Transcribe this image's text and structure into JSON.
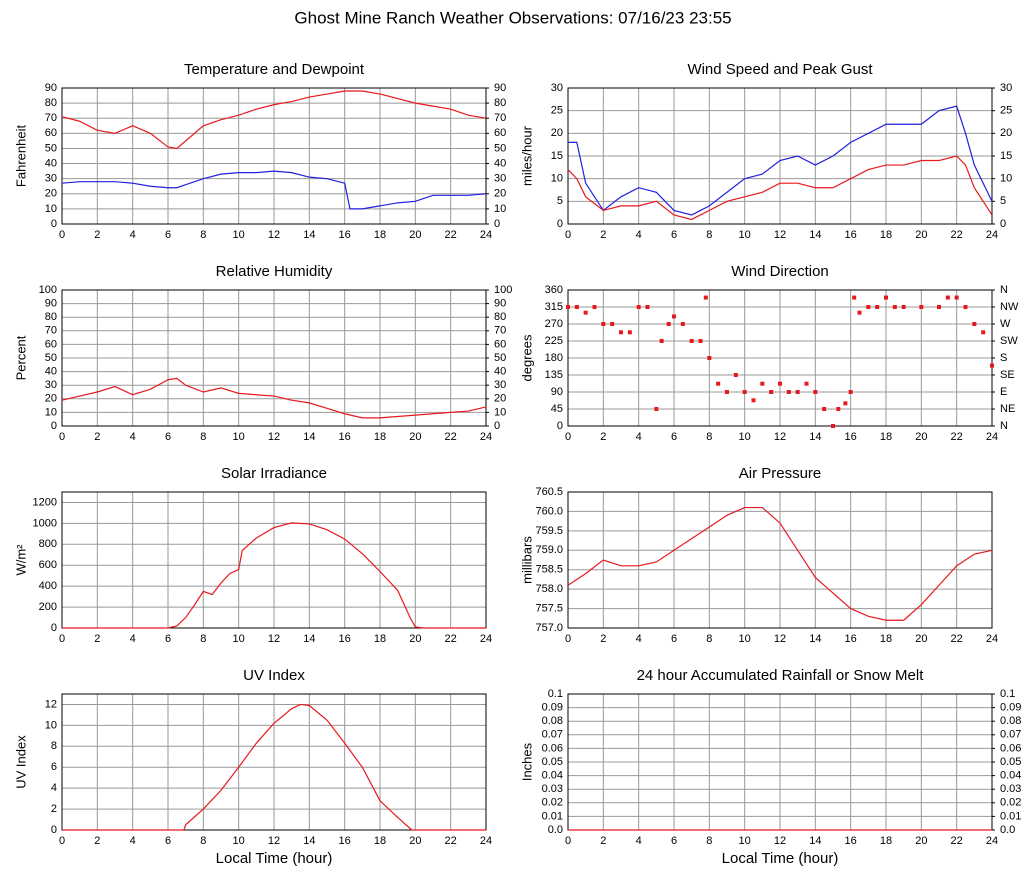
{
  "title": "Ghost Mine Ranch Weather Observations: 07/16/23 23:55",
  "chart_data": [
    {
      "type": "line",
      "title": "Temperature and Dewpoint",
      "y_label": "Fahrenheit",
      "x": [
        0,
        1,
        2,
        3,
        4,
        5,
        6,
        6.5,
        7,
        8,
        9,
        10,
        11,
        12,
        13,
        14,
        15,
        16,
        16.3,
        17,
        18,
        19,
        20,
        21,
        22,
        23,
        24
      ],
      "xlim": [
        0,
        24
      ],
      "xticks": [
        0,
        2,
        4,
        6,
        8,
        10,
        12,
        14,
        16,
        18,
        20,
        22,
        24
      ],
      "ylim": [
        0,
        90
      ],
      "yticks": [
        0,
        10,
        20,
        30,
        40,
        50,
        60,
        70,
        80,
        90
      ],
      "y2lim": [
        0,
        90
      ],
      "y2ticks": [
        0,
        10,
        20,
        30,
        40,
        50,
        60,
        70,
        80,
        90
      ],
      "grid": true,
      "series": [
        {
          "color": "#e8191d",
          "values": [
            71,
            68,
            62,
            60,
            65,
            60,
            51,
            50,
            55,
            65,
            69,
            72,
            76,
            79,
            81,
            84,
            86,
            88,
            88,
            88,
            86,
            83,
            80,
            78,
            76,
            72,
            70
          ]
        },
        {
          "color": "#2020e0",
          "values": [
            27,
            28,
            28,
            28,
            27,
            25,
            24,
            24,
            26,
            30,
            33,
            34,
            34,
            35,
            34,
            31,
            30,
            27,
            10,
            10,
            12,
            14,
            15,
            19,
            19,
            19,
            20
          ]
        }
      ]
    },
    {
      "type": "line",
      "title": "Wind Speed and Peak Gust",
      "y_label": "miles/hour",
      "x": [
        0,
        0.5,
        1,
        2,
        3,
        4,
        5,
        6,
        7,
        8,
        9,
        10,
        11,
        12,
        13,
        14,
        15,
        16,
        17,
        18,
        19,
        20,
        21,
        22,
        22.5,
        23,
        24
      ],
      "xlim": [
        0,
        24
      ],
      "xticks": [
        0,
        2,
        4,
        6,
        8,
        10,
        12,
        14,
        16,
        18,
        20,
        22,
        24
      ],
      "ylim": [
        0,
        30
      ],
      "yticks": [
        0,
        5,
        10,
        15,
        20,
        25,
        30
      ],
      "y2lim": [
        0,
        30
      ],
      "y2ticks": [
        0,
        5,
        10,
        15,
        20,
        25,
        30
      ],
      "grid": true,
      "series": [
        {
          "color": "#2020e0",
          "values": [
            18,
            18,
            9,
            3,
            6,
            8,
            7,
            3,
            2,
            4,
            7,
            10,
            11,
            14,
            15,
            13,
            15,
            18,
            20,
            22,
            22,
            22,
            25,
            26,
            20,
            13,
            5
          ]
        },
        {
          "color": "#e8191d",
          "values": [
            12,
            10,
            6,
            3,
            4,
            4,
            5,
            2,
            1,
            3,
            5,
            6,
            7,
            9,
            9,
            8,
            8,
            10,
            12,
            13,
            13,
            14,
            14,
            15,
            13,
            8,
            2
          ]
        }
      ]
    },
    {
      "type": "line",
      "title": "Relative Humidity",
      "y_label": "Percent",
      "x": [
        0,
        1,
        2,
        3,
        4,
        5,
        6,
        6.5,
        7,
        8,
        9,
        10,
        11,
        12,
        13,
        14,
        15,
        16,
        17,
        18,
        19,
        20,
        21,
        22,
        23,
        24
      ],
      "xlim": [
        0,
        24
      ],
      "xticks": [
        0,
        2,
        4,
        6,
        8,
        10,
        12,
        14,
        16,
        18,
        20,
        22,
        24
      ],
      "ylim": [
        0,
        100
      ],
      "yticks": [
        0,
        10,
        20,
        30,
        40,
        50,
        60,
        70,
        80,
        90,
        100
      ],
      "y2lim": [
        0,
        100
      ],
      "y2ticks": [
        0,
        10,
        20,
        30,
        40,
        50,
        60,
        70,
        80,
        90,
        100
      ],
      "grid": true,
      "series": [
        {
          "color": "#e8191d",
          "values": [
            19,
            22,
            25,
            29,
            23,
            27,
            34,
            35,
            30,
            25,
            28,
            24,
            23,
            22,
            19,
            17,
            13,
            9,
            6,
            6,
            7,
            8,
            9,
            10,
            11,
            14
          ]
        }
      ]
    },
    {
      "type": "scatter",
      "title": "Wind Direction",
      "y_label": "degrees",
      "x": [
        0,
        0.5,
        1,
        1.5,
        2,
        2.5,
        3,
        3.5,
        4,
        4.5,
        5,
        5.3,
        5.7,
        6,
        6.5,
        7,
        7.5,
        7.8,
        8,
        8.5,
        9,
        9.5,
        10,
        10.5,
        11,
        11.5,
        12,
        12.5,
        13,
        13.5,
        14,
        14.5,
        15,
        15.3,
        15.7,
        16,
        16.2,
        16.5,
        17,
        17.5,
        18,
        18.5,
        19,
        20,
        21,
        21.5,
        22,
        22.5,
        23,
        23.5,
        24
      ],
      "xlim": [
        0,
        24
      ],
      "xticks": [
        0,
        2,
        4,
        6,
        8,
        10,
        12,
        14,
        16,
        18,
        20,
        22,
        24
      ],
      "ylim": [
        0,
        360
      ],
      "yticks": [
        0,
        45,
        90,
        135,
        180,
        225,
        270,
        315,
        360
      ],
      "y2lim": [
        0,
        360
      ],
      "y2ticks": [
        {
          "value": 0,
          "label": "N"
        },
        {
          "value": 45,
          "label": "NE"
        },
        {
          "value": 90,
          "label": "E"
        },
        {
          "value": 135,
          "label": "SE"
        },
        {
          "value": 180,
          "label": "S"
        },
        {
          "value": 225,
          "label": "SW"
        },
        {
          "value": 270,
          "label": "W"
        },
        {
          "value": 315,
          "label": "NW"
        },
        {
          "value": 360,
          "label": "N"
        }
      ],
      "grid": true,
      "series": [
        {
          "color": "#e8191d",
          "values": [
            315,
            315,
            300,
            315,
            270,
            270,
            248,
            248,
            315,
            315,
            45,
            225,
            270,
            290,
            270,
            225,
            225,
            340,
            180,
            112,
            90,
            135,
            90,
            68,
            112,
            90,
            112,
            90,
            90,
            112,
            90,
            45,
            0,
            45,
            60,
            90,
            340,
            300,
            315,
            315,
            340,
            315,
            315,
            315,
            315,
            340,
            340,
            315,
            270,
            248,
            160
          ]
        }
      ]
    },
    {
      "type": "line",
      "title": "Solar Irradiance",
      "y_label": "W/m²",
      "x": [
        0,
        6,
        6.5,
        7,
        7.5,
        8,
        8.5,
        9,
        9.5,
        10,
        10.2,
        11,
        12,
        13,
        14,
        15,
        16,
        17,
        18,
        19,
        19.7,
        20,
        20.5,
        24
      ],
      "xlim": [
        0,
        24
      ],
      "xticks": [
        0,
        2,
        4,
        6,
        8,
        10,
        12,
        14,
        16,
        18,
        20,
        22,
        24
      ],
      "ylim": [
        0,
        1300
      ],
      "yticks": [
        0,
        200,
        400,
        600,
        800,
        1000,
        1200
      ],
      "grid": true,
      "series": [
        {
          "color": "#e8191d",
          "values": [
            0,
            0,
            20,
            100,
            220,
            350,
            320,
            430,
            520,
            560,
            740,
            860,
            960,
            1005,
            995,
            940,
            850,
            710,
            540,
            360,
            100,
            10,
            0,
            0
          ]
        }
      ]
    },
    {
      "type": "line",
      "title": "Air Pressure",
      "y_label": "millibars",
      "x": [
        0,
        1,
        2,
        3,
        4,
        5,
        6,
        7,
        8,
        9,
        10,
        11,
        12,
        13,
        14,
        15,
        16,
        17,
        18,
        19,
        20,
        21,
        22,
        23,
        24
      ],
      "xlim": [
        0,
        24
      ],
      "xticks": [
        0,
        2,
        4,
        6,
        8,
        10,
        12,
        14,
        16,
        18,
        20,
        22,
        24
      ],
      "ylim": [
        757,
        760.5
      ],
      "yticks": [
        {
          "value": 757,
          "label": "757.0"
        },
        757.5,
        {
          "value": 758,
          "label": "758.0"
        },
        758.5,
        {
          "value": 759,
          "label": "759.0"
        },
        759.5,
        {
          "value": 760,
          "label": "760.0"
        },
        760.5
      ],
      "grid": true,
      "series": [
        {
          "color": "#e8191d",
          "values": [
            758.1,
            758.4,
            758.75,
            758.6,
            758.6,
            758.7,
            759.0,
            759.3,
            759.6,
            759.9,
            760.1,
            760.1,
            759.7,
            759.0,
            758.3,
            757.9,
            757.5,
            757.3,
            757.2,
            757.2,
            757.6,
            758.1,
            758.6,
            758.9,
            759.0
          ]
        }
      ]
    },
    {
      "type": "line",
      "title": "UV Index",
      "y_label": "UV Index",
      "x_label": "Local Time (hour)",
      "x": [
        0,
        6.9,
        7,
        8,
        9,
        10,
        11,
        12,
        13,
        13.5,
        14,
        15,
        16,
        17,
        18,
        19,
        19.8,
        24
      ],
      "xlim": [
        0,
        24
      ],
      "xticks": [
        0,
        2,
        4,
        6,
        8,
        10,
        12,
        14,
        16,
        18,
        20,
        22,
        24
      ],
      "ylim": [
        0,
        13
      ],
      "yticks": [
        0,
        2,
        4,
        6,
        8,
        10,
        12
      ],
      "grid": true,
      "series": [
        {
          "color": "#e8191d",
          "values": [
            0,
            0,
            0.5,
            2,
            3.8,
            6,
            8.3,
            10.2,
            11.6,
            12,
            11.9,
            10.5,
            8.3,
            6,
            2.8,
            1.2,
            0,
            0
          ]
        }
      ]
    },
    {
      "type": "line",
      "title": "24 hour Accumulated Rainfall or Snow Melt",
      "y_label": "Inches",
      "x_label": "Local Time (hour)",
      "x": [
        0,
        24
      ],
      "xlim": [
        0,
        24
      ],
      "xticks": [
        0,
        2,
        4,
        6,
        8,
        10,
        12,
        14,
        16,
        18,
        20,
        22,
        24
      ],
      "ylim": [
        0,
        0.1
      ],
      "yticks": [
        {
          "value": 0,
          "label": "0.0"
        },
        0.01,
        0.02,
        0.03,
        0.04,
        0.05,
        0.06,
        0.07,
        0.08,
        0.09,
        0.1
      ],
      "y2lim": [
        0,
        0.1
      ],
      "y2ticks": [
        {
          "value": 0,
          "label": "0.0"
        },
        0.01,
        0.02,
        0.03,
        0.04,
        0.05,
        0.06,
        0.07,
        0.08,
        0.09,
        0.1
      ],
      "grid": true,
      "series": [
        {
          "color": "#e8191d",
          "values": [
            0,
            0
          ]
        }
      ]
    }
  ]
}
